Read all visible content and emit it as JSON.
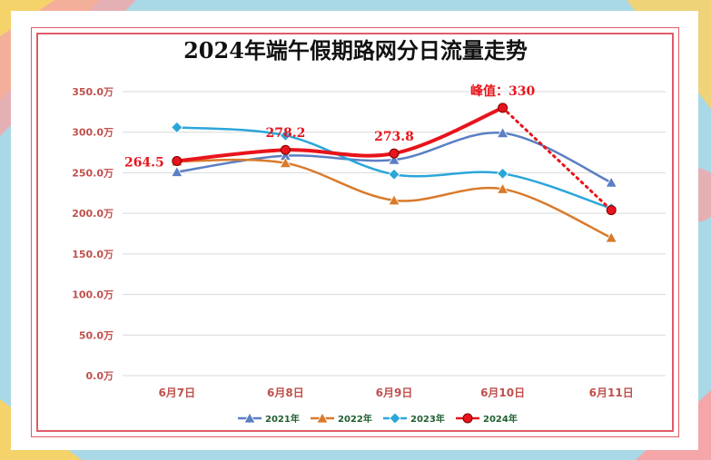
{
  "chart_data": {
    "type": "line",
    "title": "2024年端午假期路网分日流量走势",
    "categories": [
      "6月7日",
      "6月8日",
      "6月9日",
      "6月10日",
      "6月11日"
    ],
    "y_ticks": [
      "350.0万",
      "300.0万",
      "250.0万",
      "200.0万",
      "150.0万",
      "100.0万",
      "50.0万",
      "0.0万"
    ],
    "ylim": [
      0,
      350
    ],
    "grid": true,
    "legend_position": "bottom",
    "series": [
      {
        "name": "2021年",
        "values": [
          251,
          271,
          266,
          299,
          238
        ],
        "color": "#5b7fc4",
        "marker": "triangle"
      },
      {
        "name": "2022年",
        "values": [
          264,
          262,
          216,
          230,
          170
        ],
        "color": "#d97a2b",
        "marker": "triangle"
      },
      {
        "name": "2023年",
        "values": [
          306,
          296,
          248,
          249,
          206
        ],
        "color": "#2ba6d9",
        "marker": "diamond"
      },
      {
        "name": "2024年",
        "values": [
          264.5,
          278.2,
          273.8,
          330,
          204
        ],
        "color": "#e8141b",
        "marker": "circle"
      }
    ],
    "annotations": [
      "264.5",
      "278.2",
      "273.8",
      "峰值：330"
    ]
  },
  "colors": {
    "background": "#a9d8e6",
    "frame": "#e05b66",
    "tick_text": "#c0504d",
    "annotation": "#e8141b"
  }
}
